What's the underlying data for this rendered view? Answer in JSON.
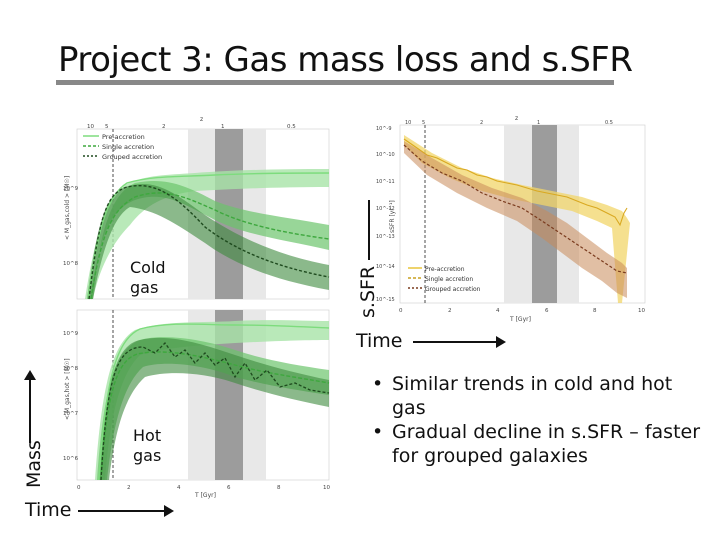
{
  "slide": {
    "title": "Project 3: Gas mass loss and s.SFR",
    "label_cold": "Cold\ngas",
    "label_hot": "Hot\ngas",
    "axis_mass": "Mass",
    "axis_time_left": "Time",
    "axis_ssfr": "s.SFR",
    "axis_time_right": "Time",
    "bullets": [
      "Similar trends in cold and hot gas",
      "Gradual decline in s.SFR – faster for grouped galaxies"
    ]
  },
  "panels": {
    "left_top": {
      "legend": [
        "Pre-accretion",
        "Single accretion",
        "Grouped accretion"
      ],
      "z_label": "z",
      "z_ticks": [
        "10",
        "5",
        "2",
        "1",
        "0.5"
      ],
      "y_label": "< M_gas,cold > [M☉]",
      "y_ticks": [
        "10^9",
        "10^8"
      ]
    },
    "left_bottom": {
      "y_label": "< M_gas,hot > [M☉]",
      "y_ticks": [
        "10^9",
        "10^8",
        "10^7",
        "10^6"
      ],
      "x_label": "T [Gyr]",
      "x_ticks": [
        "0",
        "2",
        "4",
        "6",
        "8",
        "10"
      ]
    },
    "right": {
      "legend": [
        "Pre-accretion",
        "Single accretion",
        "Grouped accretion"
      ],
      "z_label": "z",
      "z_ticks": [
        "10",
        "5",
        "2",
        "1",
        "0.5"
      ],
      "y_label": "sSFR [yr⁻¹]",
      "y_ticks": [
        "10^-9",
        "10^-10",
        "10^-11",
        "10^-12",
        "10^-13",
        "10^-14",
        "10^-15"
      ],
      "x_label": "T [Gyr]",
      "x_ticks": [
        "0",
        "2",
        "4",
        "6",
        "8",
        "10"
      ]
    }
  },
  "colors": {
    "pre": "#7ddc7d",
    "single": "#3ea83e",
    "grouped": "#2a5a2a",
    "pre_y": "#e8c43a",
    "grouped_r": "#8b4a2a",
    "band_light": "#e6e6e6",
    "band_dark": "#9e9e9e"
  }
}
